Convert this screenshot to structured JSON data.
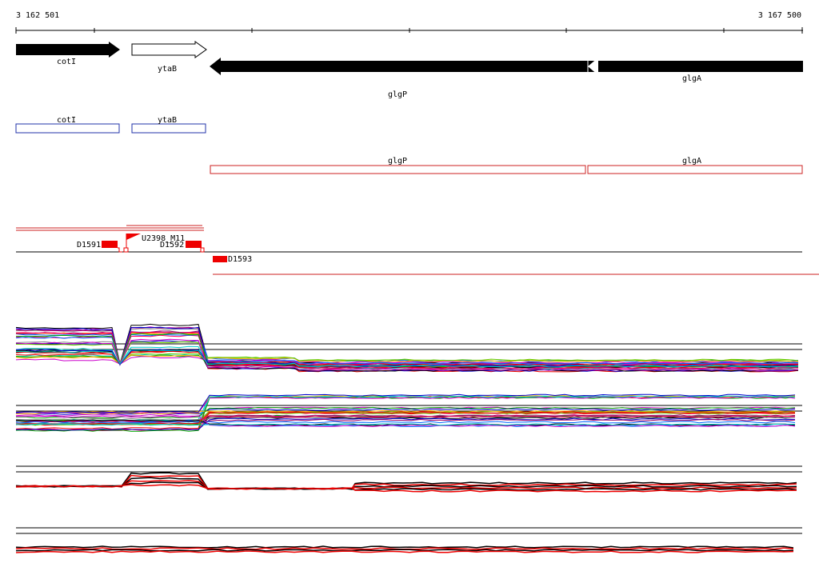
{
  "axis": {
    "start": "3 162 501",
    "end": "3 167 500"
  },
  "genes": [
    {
      "label": "cotI"
    },
    {
      "label": "ytaB"
    },
    {
      "label": "glgP"
    },
    {
      "label": "glgA"
    }
  ],
  "transcripts": [
    {
      "label": "cotI"
    },
    {
      "label": "ytaB"
    },
    {
      "label": "glgP"
    },
    {
      "label": "glgA"
    }
  ],
  "features": [
    {
      "label": "D1591"
    },
    {
      "label": "U2398_M11"
    },
    {
      "label": "D1592"
    },
    {
      "label": "D1593"
    }
  ]
}
